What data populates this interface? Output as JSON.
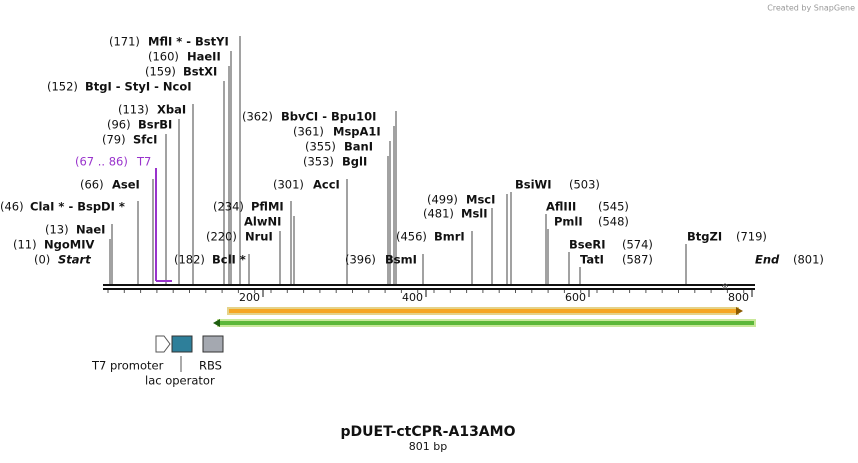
{
  "header": {
    "credit": "Created by SnapGene"
  },
  "sites": [
    {
      "position": "(171)",
      "name": "MflI * - BstYI"
    },
    {
      "position": "(160)",
      "name": "HaeII"
    },
    {
      "position": "(159)",
      "name": "BstXI"
    },
    {
      "position": "(152)",
      "name": "BtgI  - StyI  - NcoI"
    },
    {
      "position": "(113)",
      "name": "XbaI"
    },
    {
      "position": "(96)",
      "name": "BsrBI"
    },
    {
      "position": "(79)",
      "name": "SfcI"
    },
    {
      "position": "(67 .. 86)",
      "name": "T7"
    },
    {
      "position": "(66)",
      "name": "AseI"
    },
    {
      "position": "(46)",
      "name": "ClaI * - BspDI *"
    },
    {
      "position": "(13)",
      "name": "NaeI"
    },
    {
      "position": "(11)",
      "name": "NgoMIV"
    },
    {
      "position": "(0)",
      "name": "Start"
    },
    {
      "position": "(182)",
      "name": "BclI *"
    },
    {
      "position": "(220)",
      "name": "NruI"
    },
    {
      "name": "AlwNI"
    },
    {
      "position": "(234)",
      "name": "PflMI"
    },
    {
      "position": "(362)",
      "name": "BbvCI  - Bpu10I"
    },
    {
      "position": "(361)",
      "name": "MspA1I"
    },
    {
      "position": "(355)",
      "name": "BanI"
    },
    {
      "position": "(353)",
      "name": "BglI"
    },
    {
      "position": "(301)",
      "name": "AccI"
    },
    {
      "position": "(396)",
      "name": "BsmI"
    },
    {
      "position": "(456)",
      "name": "BmrI"
    },
    {
      "position": "(499)",
      "name": "MscI"
    },
    {
      "position": "(481)",
      "name": "MslI"
    },
    {
      "position": "(503)",
      "name": "BsiWI"
    },
    {
      "position": "(545)",
      "name": "AflIII"
    },
    {
      "position": "(548)",
      "name": "PmlI"
    },
    {
      "position": "(574)",
      "name": "BseRI"
    },
    {
      "position": "(587)",
      "name": "TatI"
    },
    {
      "position": "(719)",
      "name": "BtgZI"
    },
    {
      "position": "(801)",
      "name": "End"
    }
  ],
  "ruler": [
    "200",
    "400",
    "600",
    "800"
  ],
  "legend": [
    "T7 promoter",
    "lac operator",
    "RBS"
  ],
  "footer": {
    "title": "pDUET-ctCPR-A13AMO",
    "length": "801 bp"
  }
}
